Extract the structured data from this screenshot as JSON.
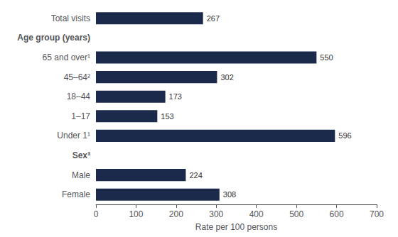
{
  "chart_data": {
    "type": "bar",
    "orientation": "horizontal",
    "xlabel": "Rate per 100 persons",
    "categories": [
      "Total visits",
      "Age group (years)",
      "65 and over¹",
      "45–64²",
      "18–44",
      "1–17",
      "Under 1¹",
      "Sex³",
      "Male",
      "Female"
    ],
    "values": [
      267,
      null,
      550,
      302,
      173,
      153,
      596,
      null,
      224,
      308
    ],
    "color": "#1b2a4a",
    "xlim": [
      0,
      700
    ],
    "xticks": [
      0,
      100,
      200,
      300,
      400,
      500,
      600,
      700
    ],
    "data_labels": true,
    "grid": false
  }
}
